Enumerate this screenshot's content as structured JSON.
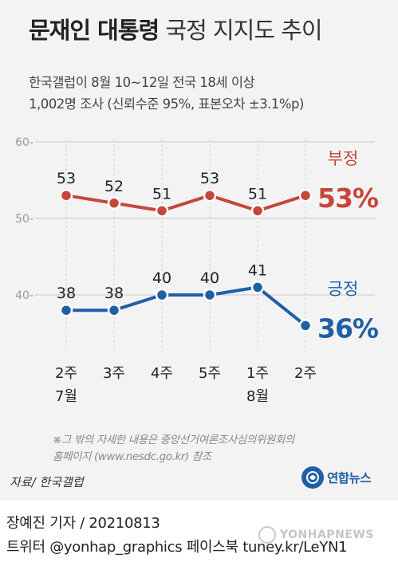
{
  "header": {
    "title_bold": "문재인 대통령",
    "title_light": "국정 지지도 추이",
    "subtitle_line1": "한국갤럽이 8월 10~12일 전국 18세 이상",
    "subtitle_line2": "1,002명 조사 (신뢰수준 95%, 표본오차 ±3.1%p)"
  },
  "chart_data": {
    "type": "line",
    "categories": [
      "2주",
      "3주",
      "4주",
      "5주",
      "1주",
      "2주"
    ],
    "month_labels": [
      {
        "label": "7월",
        "category_index": 0
      },
      {
        "label": "8월",
        "category_index": 4
      }
    ],
    "ylim": [
      35,
      60
    ],
    "yticks": [
      40,
      50,
      60
    ],
    "grid": true,
    "series": [
      {
        "name": "부정",
        "color": "#c8453a",
        "values": [
          53,
          52,
          51,
          53,
          51,
          53
        ],
        "latest_label": "53%"
      },
      {
        "name": "긍정",
        "color": "#1f5fa8",
        "values": [
          38,
          38,
          40,
          40,
          41,
          36
        ],
        "latest_label": "36%"
      }
    ]
  },
  "note": {
    "line1": "※그 밖의 자세한 내용은 중앙선거여론조사심의위원회의",
    "line2": "홈페이지 (www.nesdc.go.kr) 참조"
  },
  "source": "자료/ 한국갤럽",
  "logo": {
    "name": "연합뉴스",
    "icon": "yonhap-logo-icon"
  },
  "credit": {
    "reporter": "장예진 기자 / 20210813",
    "social": "트위터 @yonhap_graphics  페이스북 tuney.kr/LeYN1"
  },
  "watermark": "YONHAPNEWS",
  "colors": {
    "negative": "#c8453a",
    "positive": "#1f5fa8",
    "panel": "#f3f3f3"
  }
}
